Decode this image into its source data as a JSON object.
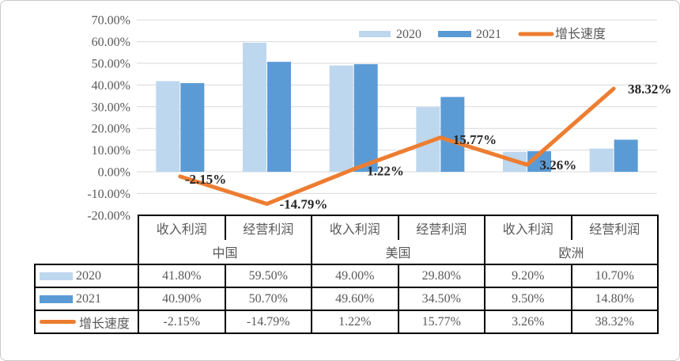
{
  "colors": {
    "bar_2020": "#BDD7EE",
    "bar_2021": "#5B9BD5",
    "growth_line": "#ED7D31",
    "gridline": "#D9D9D9",
    "axis_text": "#595959",
    "data_label_text": "#262626",
    "table_border": "#000000"
  },
  "chart_data": {
    "type": "combo",
    "title": "",
    "xlabel": "",
    "ylabel": "",
    "categories": [
      "中国 收入利润",
      "中国 经营利润",
      "美国 收入利润",
      "美国 经营利润",
      "欧洲 收入利润",
      "欧洲 经营利润"
    ],
    "region_groups": [
      {
        "region": "中国",
        "metrics": [
          "收入利润",
          "经营利润"
        ]
      },
      {
        "region": "美国",
        "metrics": [
          "收入利润",
          "经营利润"
        ]
      },
      {
        "region": "欧洲",
        "metrics": [
          "收入利润",
          "经营利润"
        ]
      }
    ],
    "series": [
      {
        "name": "2020",
        "type": "bar",
        "color": "#BDD7EE",
        "values": [
          41.8,
          59.5,
          49.0,
          29.8,
          9.2,
          10.7
        ]
      },
      {
        "name": "2021",
        "type": "bar",
        "color": "#5B9BD5",
        "values": [
          40.9,
          50.7,
          49.6,
          34.5,
          9.5,
          14.8
        ]
      },
      {
        "name": "增长速度",
        "type": "line",
        "color": "#ED7D31",
        "values": [
          -2.15,
          -14.79,
          1.22,
          15.77,
          3.26,
          38.32
        ],
        "data_labels": [
          "-2.15%",
          "-14.79%",
          "1.22%",
          "15.77%",
          "3.26%",
          "38.32%"
        ]
      }
    ],
    "y_ticks": [
      "70.00%",
      "60.00%",
      "50.00%",
      "40.00%",
      "30.00%",
      "20.00%",
      "10.00%",
      "0.00%",
      "-10.00%",
      "-20.00%"
    ],
    "y_tick_values": [
      70,
      60,
      50,
      40,
      30,
      20,
      10,
      0,
      -10,
      -20
    ],
    "ylim": [
      -20,
      70
    ],
    "grid": true,
    "legend_position": "top",
    "legend": [
      "2020",
      "2021",
      "增长速度"
    ]
  },
  "table": {
    "col_headers": [
      "收入利润",
      "经营利润",
      "收入利润",
      "经营利润",
      "收入利润",
      "经营利润"
    ],
    "region_headers": [
      "中国",
      "美国",
      "欧洲"
    ],
    "rows": [
      {
        "label": "2020",
        "swatch": "bar",
        "color": "#BDD7EE",
        "values": [
          "41.80%",
          "59.50%",
          "49.00%",
          "29.80%",
          "9.20%",
          "10.70%"
        ]
      },
      {
        "label": "2021",
        "swatch": "bar",
        "color": "#5B9BD5",
        "values": [
          "40.90%",
          "50.70%",
          "49.60%",
          "34.50%",
          "9.50%",
          "14.80%"
        ]
      },
      {
        "label": "增长速度",
        "swatch": "line",
        "color": "#ED7D31",
        "values": [
          "-2.15%",
          "-14.79%",
          "1.22%",
          "15.77%",
          "3.26%",
          "38.32%"
        ]
      }
    ]
  }
}
